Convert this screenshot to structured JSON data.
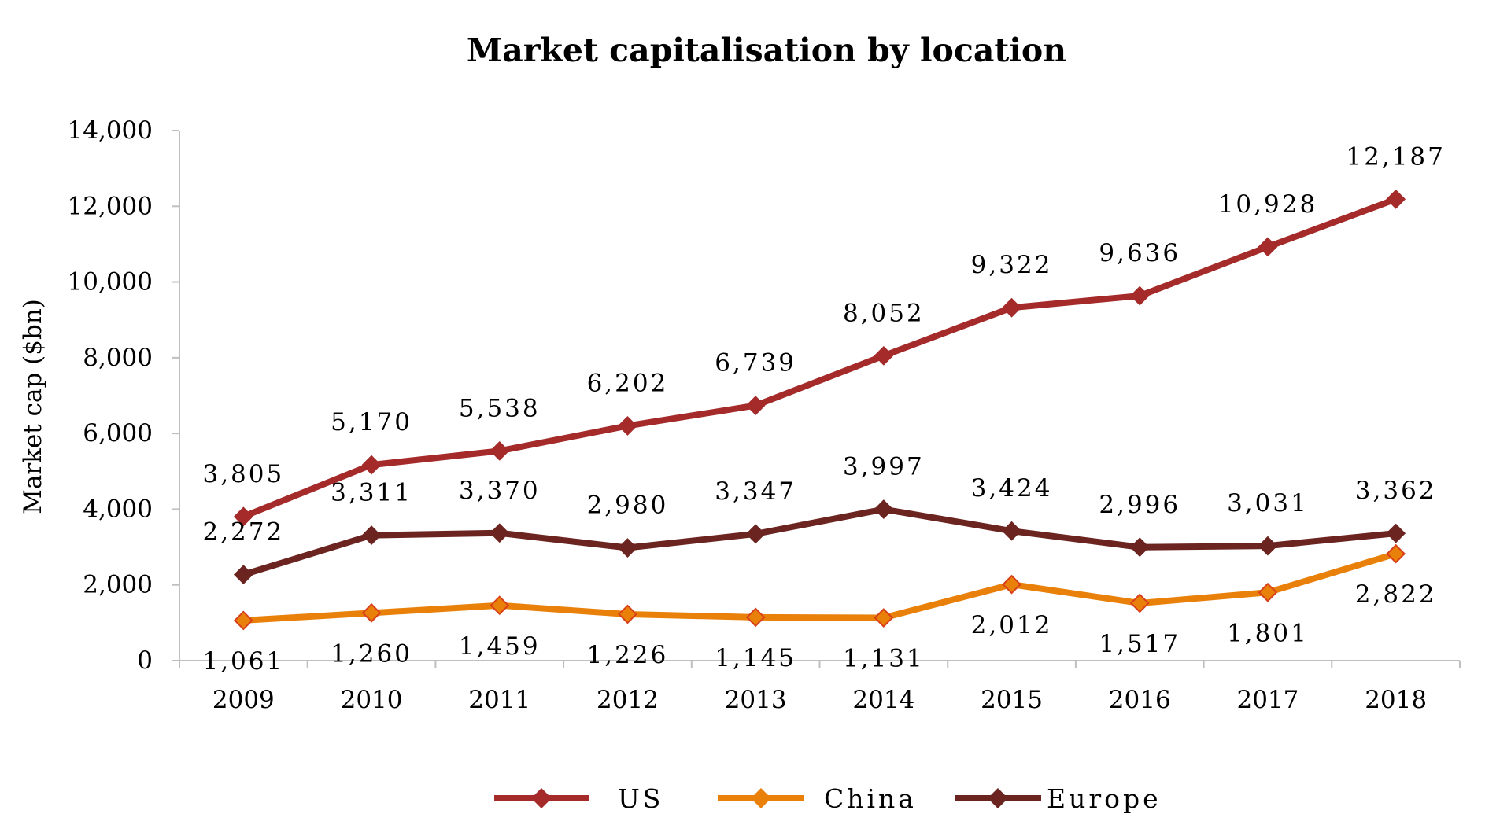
{
  "chart_data": {
    "type": "line",
    "title": "Market capitalisation by location",
    "xlabel": "",
    "ylabel": "Market cap ($bn)",
    "ylim": [
      0,
      14000
    ],
    "yticks": [
      0,
      2000,
      4000,
      6000,
      8000,
      10000,
      12000,
      14000
    ],
    "ytick_labels": [
      "0",
      "2,000",
      "4,000",
      "6,000",
      "8,000",
      "10,000",
      "12,000",
      "14,000"
    ],
    "categories": [
      "2009",
      "2010",
      "2011",
      "2012",
      "2013",
      "2014",
      "2015",
      "2016",
      "2017",
      "2018"
    ],
    "series": [
      {
        "name": "US",
        "color": "#A52A2A",
        "values": [
          3805,
          5170,
          5538,
          6202,
          6739,
          8052,
          9322,
          9636,
          10928,
          12187
        ],
        "labels": [
          "3,805",
          "5,170",
          "5,538",
          "6,202",
          "6,739",
          "8,052",
          "9,322",
          "9,636",
          "10,928",
          "12,187"
        ]
      },
      {
        "name": "China",
        "color": "#E8800A",
        "values": [
          1061,
          1260,
          1459,
          1226,
          1145,
          1131,
          2012,
          1517,
          1801,
          2822
        ],
        "labels": [
          "1,061",
          "1,260",
          "1,459",
          "1,226",
          "1,145",
          "1,131",
          "2,012",
          "1,517",
          "1,801",
          "2,822"
        ]
      },
      {
        "name": "Europe",
        "color": "#6B2420",
        "values": [
          2272,
          3311,
          3370,
          2980,
          3347,
          3997,
          3424,
          2996,
          3031,
          3362
        ],
        "labels": [
          "2,272",
          "3,311",
          "3,370",
          "2,980",
          "3,347",
          "3,997",
          "3,424",
          "2,996",
          "3,031",
          "3,362"
        ]
      }
    ],
    "legend_position": "bottom",
    "grid": false
  }
}
